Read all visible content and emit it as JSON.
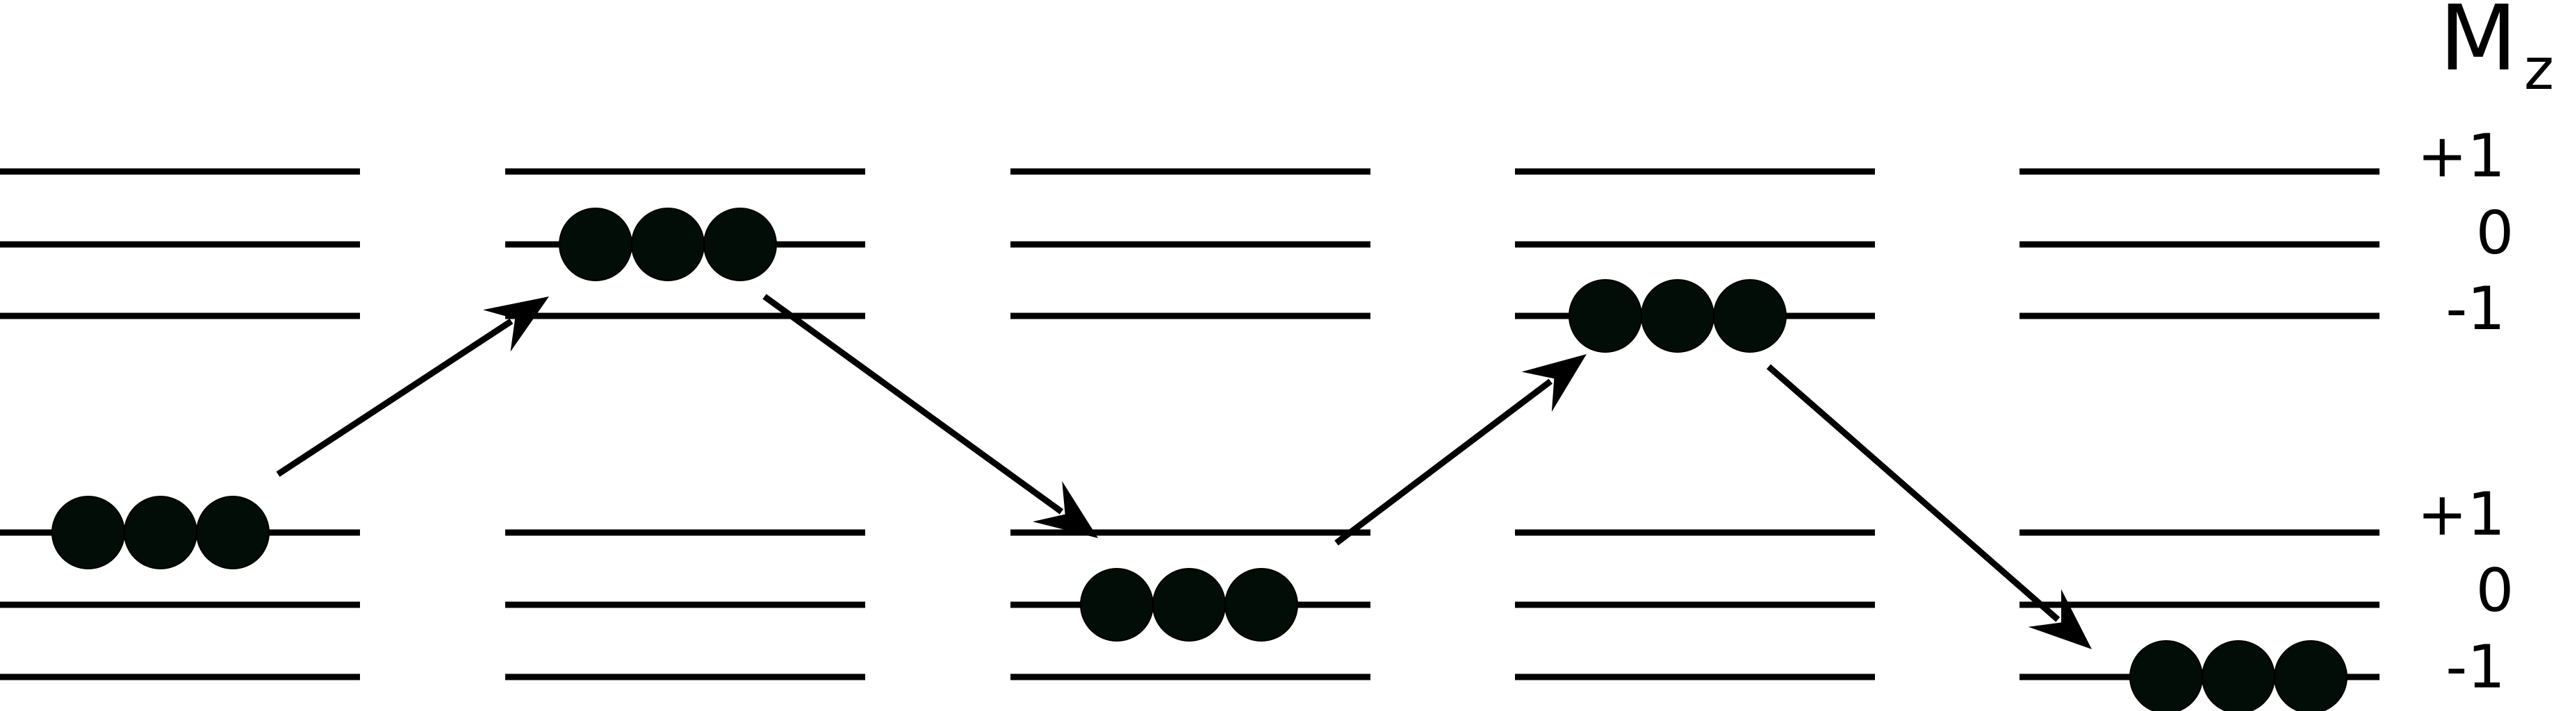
{
  "axis": {
    "title": "M",
    "subscript": "z"
  },
  "upper_manifold": {
    "labels": [
      "+1",
      "0",
      "-1"
    ]
  },
  "lower_manifold": {
    "labels": [
      "+1",
      "0",
      "-1"
    ]
  },
  "columns": [
    {
      "manifold": "lower",
      "occupied": "+1"
    },
    {
      "manifold": "upper",
      "occupied": "0"
    },
    {
      "manifold": "lower",
      "occupied": "0"
    },
    {
      "manifold": "upper",
      "occupied": "-1"
    },
    {
      "manifold": "lower",
      "occupied": "-1"
    }
  ],
  "atoms_per_state": 3,
  "colors": {
    "line": "#000000",
    "atom": "#030d08",
    "background": "#ffffff"
  }
}
